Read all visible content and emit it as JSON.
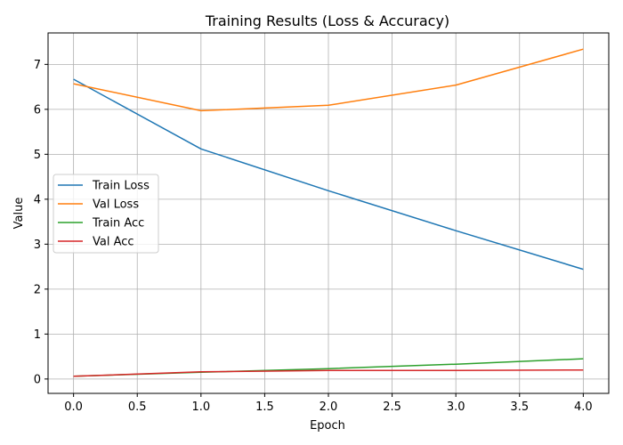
{
  "chart_data": {
    "type": "line",
    "title": "Training Results (Loss & Accuracy)",
    "xlabel": "Epoch",
    "ylabel": "Value",
    "xlim": [
      -0.2,
      4.2
    ],
    "ylim": [
      -0.32,
      7.7
    ],
    "x": [
      0,
      1,
      2,
      3,
      4
    ],
    "xticks": [
      0.0,
      0.5,
      1.0,
      1.5,
      2.0,
      2.5,
      3.0,
      3.5,
      4.0
    ],
    "xtick_labels": [
      "0.0",
      "0.5",
      "1.0",
      "1.5",
      "2.0",
      "2.5",
      "3.0",
      "3.5",
      "4.0"
    ],
    "yticks": [
      0,
      1,
      2,
      3,
      4,
      5,
      6,
      7
    ],
    "ytick_labels": [
      "0",
      "1",
      "2",
      "3",
      "4",
      "5",
      "6",
      "7"
    ],
    "grid": true,
    "legend_position": "center-left",
    "series": [
      {
        "name": "Train Loss",
        "color": "#1f77b4",
        "values": [
          6.67,
          5.12,
          4.19,
          3.3,
          2.44
        ]
      },
      {
        "name": "Val Loss",
        "color": "#ff7f0e",
        "values": [
          6.57,
          5.97,
          6.09,
          6.54,
          7.34
        ]
      },
      {
        "name": "Train Acc",
        "color": "#2ca02c",
        "values": [
          0.06,
          0.15,
          0.23,
          0.33,
          0.45
        ]
      },
      {
        "name": "Val Acc",
        "color": "#d62728",
        "values": [
          0.06,
          0.16,
          0.19,
          0.19,
          0.2
        ]
      }
    ]
  }
}
